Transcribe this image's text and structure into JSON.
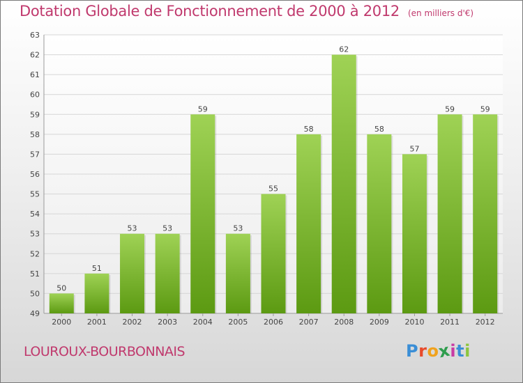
{
  "header": {
    "title": "Dotation Globale de Fonctionnement de 2000 à 2012",
    "unit": "(en milliers d'€)"
  },
  "footer": {
    "commune": "LOUROUX-BOURBONNAIS",
    "brand_letters": [
      "P",
      "r",
      "o",
      "x",
      "i",
      "t",
      "i"
    ],
    "brand_colors": [
      "#3a8ed6",
      "#e84b2c",
      "#f0a21d",
      "#2e9d4d",
      "#c83aa4",
      "#3a8ed6",
      "#8cc63e"
    ]
  },
  "colors": {
    "accent": "#c0396d",
    "bar_top": "#9fd255",
    "bar_bottom": "#5c9a12",
    "grid": "#d6d6d6",
    "axis_text": "#444444"
  },
  "chart_data": {
    "type": "bar",
    "categories": [
      "2000",
      "2001",
      "2002",
      "2003",
      "2004",
      "2005",
      "2006",
      "2007",
      "2008",
      "2009",
      "2010",
      "2011",
      "2012"
    ],
    "values": [
      50,
      51,
      53,
      53,
      59,
      53,
      55,
      58,
      62,
      58,
      57,
      59,
      59
    ],
    "data_labels": [
      "50",
      "51",
      "53",
      "53",
      "59",
      "53",
      "55",
      "58",
      "62",
      "58",
      "57",
      "59",
      "59"
    ],
    "yticks": [
      "49",
      "50",
      "51",
      "52",
      "53",
      "54",
      "55",
      "56",
      "57",
      "58",
      "59",
      "60",
      "61",
      "62",
      "63"
    ],
    "ylim": [
      49,
      63
    ],
    "grid": true,
    "legend": "none"
  }
}
